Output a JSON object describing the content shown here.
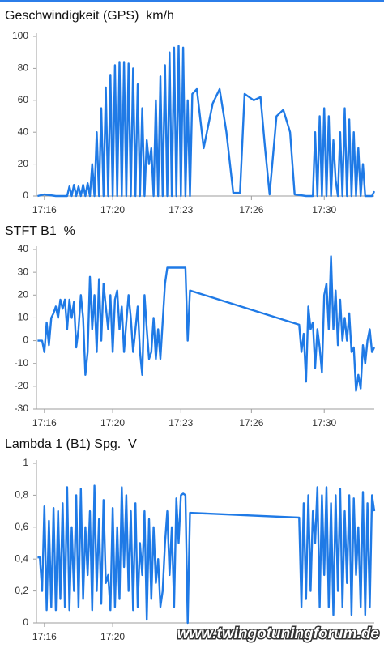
{
  "chart_data": [
    {
      "type": "line",
      "title": "Geschwindigkeit (GPS)  km/h",
      "color": "#1f7ae6",
      "xlim": [
        16.15,
        31.0
      ],
      "ylim": [
        0,
        100
      ],
      "yticks": [
        0,
        20,
        40,
        60,
        80,
        100
      ],
      "xticks": [
        {
          "value": 16.5,
          "label": "17:16"
        },
        {
          "value": 19.5,
          "label": "17:20"
        },
        {
          "value": 22.5,
          "label": "17:23"
        },
        {
          "value": 25.6,
          "label": "17:26"
        },
        {
          "value": 28.8,
          "label": "17:30"
        }
      ],
      "x": [
        16.2,
        16.5,
        17.0,
        17.5,
        17.6,
        17.7,
        17.8,
        17.9,
        18.0,
        18.1,
        18.2,
        18.3,
        18.4,
        18.5,
        18.6,
        18.7,
        18.8,
        18.9,
        19.0,
        19.1,
        19.2,
        19.3,
        19.4,
        19.5,
        19.6,
        19.7,
        19.8,
        19.9,
        20.0,
        20.1,
        20.2,
        20.3,
        20.4,
        20.5,
        20.6,
        20.7,
        20.8,
        20.9,
        21.0,
        21.1,
        21.2,
        21.3,
        21.4,
        21.5,
        21.6,
        21.7,
        21.8,
        21.9,
        22.0,
        22.1,
        22.2,
        22.3,
        22.4,
        22.5,
        22.6,
        22.7,
        22.8,
        22.9,
        23.0,
        23.2,
        23.5,
        23.9,
        24.2,
        24.5,
        24.8,
        25.1,
        25.3,
        25.7,
        26.0,
        26.2,
        26.4,
        26.7,
        27.0,
        27.3,
        27.5,
        28.0,
        28.3,
        28.4,
        28.5,
        28.6,
        28.7,
        28.8,
        28.9,
        29.0,
        29.1,
        29.2,
        29.3,
        29.4,
        29.5,
        29.6,
        29.7,
        29.8,
        29.9,
        30.0,
        30.1,
        30.2,
        30.3,
        30.4,
        30.5,
        30.6,
        30.7,
        30.9,
        31.0
      ],
      "values": [
        0,
        1,
        0,
        0,
        6,
        0,
        7,
        0,
        6,
        0,
        7,
        0,
        8,
        0,
        20,
        0,
        40,
        0,
        55,
        0,
        68,
        0,
        76,
        0,
        82,
        0,
        84,
        0,
        84,
        0,
        83,
        0,
        80,
        0,
        70,
        0,
        55,
        0,
        35,
        20,
        30,
        0,
        60,
        0,
        75,
        0,
        82,
        0,
        90,
        0,
        93,
        0,
        94,
        0,
        93,
        0,
        60,
        0,
        64,
        67,
        30,
        58,
        67,
        40,
        2,
        2,
        64,
        60,
        62,
        30,
        1,
        50,
        54,
        40,
        1,
        0,
        0,
        40,
        0,
        50,
        0,
        55,
        0,
        50,
        0,
        35,
        10,
        0,
        40,
        0,
        55,
        0,
        48,
        0,
        40,
        0,
        30,
        0,
        20,
        0,
        0,
        0,
        3
      ]
    },
    {
      "type": "line",
      "title": "STFT B1  %",
      "color": "#1f7ae6",
      "xlim": [
        16.15,
        31.0
      ],
      "ylim": [
        -30,
        40
      ],
      "yticks": [
        -30,
        -20,
        -10,
        0,
        10,
        20,
        30,
        40
      ],
      "xticks": [
        {
          "value": 16.5,
          "label": "17:16"
        },
        {
          "value": 19.5,
          "label": "17:20"
        },
        {
          "value": 22.5,
          "label": "17:23"
        },
        {
          "value": 25.6,
          "label": "17:26"
        },
        {
          "value": 28.8,
          "label": "17:30"
        }
      ],
      "x": [
        16.2,
        16.4,
        16.5,
        16.6,
        16.7,
        16.8,
        16.9,
        17.0,
        17.1,
        17.2,
        17.3,
        17.4,
        17.5,
        17.6,
        17.7,
        17.8,
        17.9,
        18.0,
        18.1,
        18.2,
        18.3,
        18.4,
        18.5,
        18.6,
        18.7,
        18.8,
        18.9,
        19.0,
        19.1,
        19.2,
        19.3,
        19.4,
        19.5,
        19.6,
        19.7,
        19.8,
        19.9,
        20.0,
        20.1,
        20.2,
        20.3,
        20.4,
        20.5,
        20.6,
        20.7,
        20.8,
        20.9,
        21.0,
        21.1,
        21.2,
        21.3,
        21.4,
        21.5,
        21.6,
        21.8,
        21.9,
        22.6,
        22.7,
        22.8,
        22.9,
        27.7,
        27.8,
        27.9,
        28.0,
        28.1,
        28.2,
        28.3,
        28.4,
        28.5,
        28.6,
        28.7,
        28.8,
        28.9,
        29.0,
        29.1,
        29.2,
        29.3,
        29.4,
        29.5,
        29.6,
        29.7,
        29.8,
        29.9,
        30.0,
        30.1,
        30.2,
        30.3,
        30.4,
        30.5,
        30.6,
        30.7,
        30.8,
        30.9,
        31.0
      ],
      "values": [
        0,
        0,
        -5,
        8,
        -2,
        10,
        12,
        15,
        10,
        18,
        14,
        18,
        5,
        18,
        10,
        17,
        -3,
        5,
        20,
        10,
        -15,
        -5,
        28,
        5,
        20,
        -5,
        27,
        0,
        25,
        15,
        5,
        20,
        -5,
        18,
        22,
        5,
        15,
        -5,
        8,
        20,
        10,
        -5,
        5,
        15,
        -5,
        -15,
        20,
        5,
        -8,
        -5,
        10,
        -8,
        5,
        -8,
        25,
        32,
        32,
        32,
        0,
        22,
        7,
        -5,
        3,
        -18,
        15,
        5,
        8,
        -12,
        5,
        -3,
        -14,
        20,
        25,
        5,
        37,
        5,
        22,
        -2,
        18,
        0,
        10,
        0,
        12,
        -5,
        -3,
        -22,
        -15,
        -21,
        -2,
        -10,
        0,
        5,
        -5,
        -3
      ]
    },
    {
      "type": "line",
      "title": "Lambda 1 (B1) Spg.  V",
      "color": "#1f7ae6",
      "xlim": [
        16.15,
        31.0
      ],
      "ylim": [
        0,
        1
      ],
      "yticks": [
        0,
        {
          "value": 0.2,
          "label": "0,2"
        },
        {
          "value": 0.4,
          "label": "0,4"
        },
        {
          "value": 0.6,
          "label": "0,6"
        },
        {
          "value": 0.8,
          "label": "0,8"
        },
        1
      ],
      "xticks": [
        {
          "value": 16.5,
          "label": "17:16"
        },
        {
          "value": 19.5,
          "label": "17:20"
        }
      ],
      "x": [
        16.2,
        16.3,
        16.4,
        16.5,
        16.6,
        16.7,
        16.8,
        16.9,
        17.0,
        17.1,
        17.2,
        17.3,
        17.4,
        17.5,
        17.6,
        17.7,
        17.8,
        17.9,
        18.0,
        18.1,
        18.2,
        18.3,
        18.4,
        18.5,
        18.6,
        18.7,
        18.8,
        18.9,
        19.0,
        19.1,
        19.2,
        19.3,
        19.4,
        19.5,
        19.6,
        19.7,
        19.8,
        19.9,
        20.0,
        20.1,
        20.2,
        20.3,
        20.4,
        20.5,
        20.6,
        20.7,
        20.8,
        20.9,
        21.0,
        21.1,
        21.2,
        21.3,
        21.4,
        21.5,
        21.6,
        21.7,
        21.8,
        21.9,
        22.0,
        22.1,
        22.2,
        22.3,
        22.4,
        22.5,
        22.6,
        22.7,
        22.8,
        22.9,
        27.7,
        27.8,
        27.9,
        28.0,
        28.1,
        28.2,
        28.3,
        28.4,
        28.5,
        28.6,
        28.7,
        28.8,
        28.9,
        29.0,
        29.1,
        29.2,
        29.3,
        29.4,
        29.5,
        29.6,
        29.7,
        29.8,
        29.9,
        30.0,
        30.1,
        30.2,
        30.3,
        30.4,
        30.5,
        30.6,
        30.7,
        30.8,
        30.9,
        31.0
      ],
      "values": [
        0.41,
        0.41,
        0.2,
        0.73,
        0.08,
        0.64,
        0.1,
        0.72,
        0.08,
        0.7,
        0.15,
        0.75,
        0.1,
        0.85,
        0.08,
        0.6,
        0.2,
        0.8,
        0.1,
        0.84,
        0.15,
        0.6,
        0.3,
        0.7,
        0.08,
        0.86,
        0.2,
        0.65,
        0.12,
        0.77,
        0.25,
        0.3,
        0.08,
        0.72,
        0.1,
        0.6,
        0.15,
        0.85,
        0.35,
        0.8,
        0.2,
        0.7,
        0.08,
        0.75,
        0.1,
        0.5,
        0.3,
        0.7,
        0.02,
        0.65,
        0.15,
        0.6,
        0.25,
        0.4,
        0.1,
        0.2,
        0.5,
        0.7,
        0.3,
        0.6,
        0.1,
        0.78,
        0.5,
        0.8,
        0.81,
        0.8,
        0,
        0.69,
        0.66,
        0.1,
        0.75,
        0.15,
        0.8,
        0.2,
        0.7,
        0.5,
        0.85,
        0.1,
        0.8,
        0.3,
        0.85,
        0.1,
        0.75,
        0.05,
        0.8,
        0.2,
        0.84,
        0.1,
        0.7,
        0.25,
        0.8,
        0.05,
        0.78,
        0.3,
        0.6,
        0.1,
        0.82,
        0.05,
        0.75,
        0.1,
        0.8,
        0.7
      ]
    }
  ],
  "watermark": "www.twingotuningforum.de"
}
